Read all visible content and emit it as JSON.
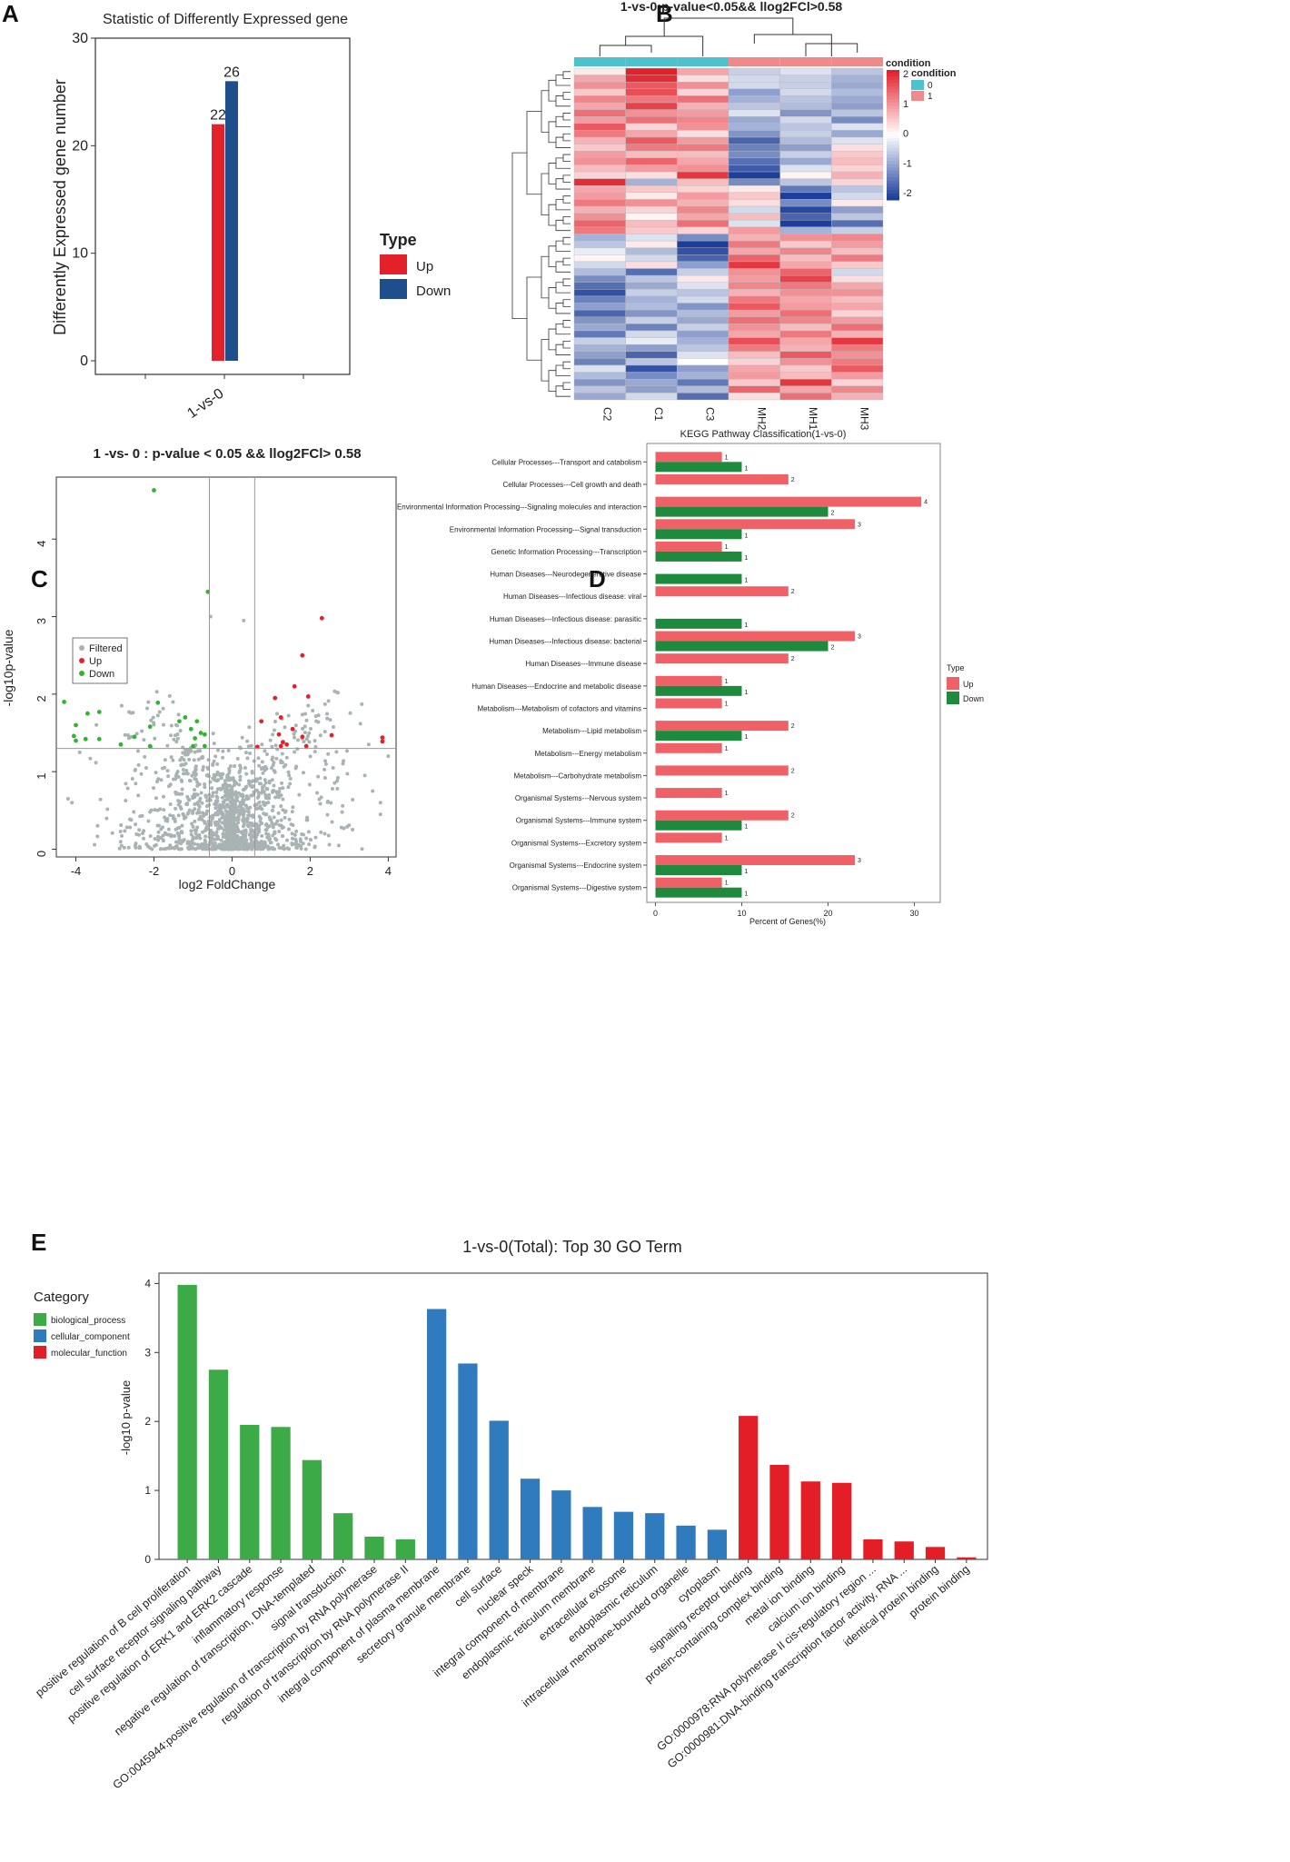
{
  "panels": {
    "a": {
      "label": "A",
      "chart_data": {
        "type": "bar",
        "title": "Statistic of Differently Expressed gene",
        "ylabel": "Differently Expressed gene number",
        "xlabel": "",
        "categories": [
          "1-vs-0"
        ],
        "series": [
          {
            "name": "Up",
            "values": [
              22
            ],
            "color": "#e3212b"
          },
          {
            "name": "Down",
            "values": [
              26
            ],
            "color": "#1f4e8c"
          }
        ],
        "ylim": [
          0,
          30
        ],
        "yticks": [
          0,
          10,
          20,
          30
        ],
        "legend_title": "Type",
        "legend_position": "right"
      }
    },
    "b": {
      "label": "B",
      "chart_data": {
        "type": "heatmap",
        "title": "1-vs-0:p-value<0.05&& llog2FCl>0.58",
        "columns": [
          "C2",
          "C1",
          "C3",
          "MH2",
          "MH1",
          "MH3"
        ],
        "column_condition": [
          "0",
          "0",
          "0",
          "1",
          "1",
          "1"
        ],
        "legend_title": "condition",
        "annotation_title": "condition",
        "condition_levels": [
          "0",
          "1"
        ],
        "condition_colors": [
          "#4dc1cc",
          "#f08a8a"
        ],
        "color_scale": {
          "min": -2,
          "max": 2,
          "low": "#1d3f9a",
          "mid": "#ffffff",
          "high": "#e3212b",
          "ticks": [
            "2",
            "1",
            "0",
            "-1",
            "-2"
          ]
        },
        "row_count": 48,
        "rows": [
          [
            0.2,
            2.0,
            0.8,
            -0.5,
            -0.3,
            -0.6
          ],
          [
            0.8,
            1.9,
            0.3,
            -0.4,
            -0.5,
            -0.8
          ],
          [
            1.0,
            1.5,
            1.0,
            -0.4,
            -0.5,
            -0.9
          ],
          [
            0.5,
            1.6,
            0.4,
            -1.0,
            -0.4,
            -0.7
          ],
          [
            1.1,
            1.2,
            1.3,
            -0.8,
            -0.6,
            -0.9
          ],
          [
            0.8,
            1.7,
            0.7,
            -0.6,
            -0.7,
            -1.0
          ],
          [
            1.3,
            1.0,
            0.9,
            -0.3,
            -1.1,
            -0.6
          ],
          [
            0.9,
            1.3,
            1.1,
            -0.9,
            -0.4,
            -1.2
          ],
          [
            1.5,
            0.4,
            1.0,
            -0.8,
            -0.6,
            -0.3
          ],
          [
            1.2,
            0.8,
            0.3,
            -1.1,
            -0.5,
            -0.9
          ],
          [
            0.7,
            1.5,
            0.9,
            -1.6,
            -0.7,
            -0.3
          ],
          [
            0.5,
            1.2,
            1.2,
            -1.3,
            -1.0,
            0.3
          ],
          [
            0.9,
            0.6,
            0.6,
            -1.2,
            -0.5,
            0.5
          ],
          [
            1.0,
            1.4,
            0.8,
            -1.5,
            -0.9,
            0.6
          ],
          [
            0.6,
            0.9,
            1.0,
            -1.7,
            -0.3,
            0.4
          ],
          [
            0.4,
            0.3,
            1.8,
            -2.0,
            0.1,
            0.7
          ],
          [
            1.9,
            -0.8,
            0.6,
            -1.2,
            -0.6,
            0.4
          ],
          [
            0.8,
            0.5,
            0.4,
            0.2,
            -1.4,
            -0.6
          ],
          [
            0.9,
            0.2,
            0.9,
            0.5,
            -2.0,
            -0.4
          ],
          [
            1.2,
            1.0,
            0.7,
            0.3,
            -1.2,
            0.2
          ],
          [
            0.7,
            0.4,
            1.1,
            -0.4,
            -1.9,
            -1.0
          ],
          [
            1.0,
            0.1,
            0.8,
            0.6,
            -1.6,
            -0.6
          ],
          [
            1.4,
            0.6,
            1.3,
            -0.3,
            -2.0,
            -1.5
          ],
          [
            1.2,
            0.5,
            0.4,
            0.9,
            -0.8,
            -0.5
          ],
          [
            -0.8,
            -0.3,
            -1.2,
            0.7,
            1.0,
            1.1
          ],
          [
            -0.6,
            0.2,
            -2.0,
            1.2,
            0.5,
            0.9
          ],
          [
            -0.2,
            -0.7,
            -1.8,
            0.8,
            1.1,
            0.6
          ],
          [
            0.1,
            -0.4,
            -1.6,
            1.4,
            0.6,
            1.2
          ],
          [
            -0.4,
            0.3,
            -1.0,
            1.8,
            0.8,
            0.5
          ],
          [
            -0.7,
            -1.5,
            -0.5,
            1.0,
            1.4,
            -0.4
          ],
          [
            -1.2,
            -0.6,
            0.2,
            0.9,
            1.7,
            0.3
          ],
          [
            -1.5,
            -0.9,
            -0.3,
            1.1,
            1.2,
            0.8
          ],
          [
            -1.8,
            -0.5,
            -0.6,
            0.7,
            1.0,
            1.0
          ],
          [
            -1.3,
            -0.8,
            -0.4,
            1.2,
            0.8,
            0.6
          ],
          [
            -1.0,
            -0.7,
            -1.1,
            1.5,
            0.9,
            0.8
          ],
          [
            -1.6,
            -1.1,
            -0.7,
            0.9,
            1.3,
            0.4
          ],
          [
            -1.1,
            -0.5,
            -0.9,
            1.3,
            1.1,
            0.9
          ],
          [
            -0.9,
            -1.3,
            -0.5,
            1.0,
            0.6,
            1.3
          ],
          [
            -1.4,
            -0.4,
            -1.0,
            0.8,
            1.2,
            0.7
          ],
          [
            -0.5,
            -0.2,
            -0.8,
            1.6,
            0.8,
            1.8
          ],
          [
            -0.8,
            -1.0,
            -0.6,
            1.2,
            0.7,
            1.2
          ],
          [
            -1.0,
            -1.6,
            -0.3,
            0.6,
            1.5,
            1.0
          ],
          [
            -1.3,
            -0.6,
            0.0,
            0.4,
            1.0,
            1.2
          ],
          [
            -0.3,
            -1.8,
            -1.0,
            0.8,
            0.5,
            1.5
          ],
          [
            -0.7,
            -1.2,
            -0.8,
            0.9,
            0.6,
            0.9
          ],
          [
            -1.1,
            -0.9,
            -1.4,
            0.5,
            1.8,
            0.4
          ],
          [
            -0.6,
            -1.0,
            -0.7,
            1.4,
            0.8,
            1.1
          ],
          [
            -0.9,
            -0.4,
            -1.5,
            0.3,
            1.3,
            0.7
          ]
        ]
      }
    },
    "c": {
      "label": "C",
      "chart_data": {
        "type": "scatter",
        "title": "1 -vs- 0 : p-value < 0.05 && llog2FCl> 0.58",
        "xlabel": "log2 FoldChange",
        "ylabel": "-log10p-value",
        "xlim": [
          -4.5,
          4.2
        ],
        "ylim": [
          -0.1,
          4.8
        ],
        "xticks": [
          -4,
          -2,
          0,
          2,
          4
        ],
        "yticks": [
          0,
          1,
          2,
          3,
          4
        ],
        "vlines": [
          -0.58,
          0.58
        ],
        "hline": 1.3,
        "legend": [
          {
            "name": "Filtered",
            "color": "#a9b3b3"
          },
          {
            "name": "Up",
            "color": "#e3212b"
          },
          {
            "name": "Down",
            "color": "#2fb52f"
          }
        ],
        "background_points": 1600,
        "up": [
          [
            2.3,
            2.98
          ],
          [
            1.8,
            2.5
          ],
          [
            1.6,
            2.1
          ],
          [
            1.95,
            1.97
          ],
          [
            1.1,
            1.95
          ],
          [
            0.75,
            1.65
          ],
          [
            1.25,
            1.7
          ],
          [
            1.55,
            1.55
          ],
          [
            2.55,
            1.47
          ],
          [
            3.85,
            1.44
          ],
          [
            3.85,
            1.39
          ],
          [
            1.2,
            1.48
          ],
          [
            1.8,
            1.45
          ],
          [
            1.3,
            1.38
          ],
          [
            1.4,
            1.35
          ],
          [
            1.9,
            1.33
          ],
          [
            0.65,
            1.32
          ],
          [
            1.25,
            1.33
          ]
        ],
        "down": [
          [
            -2.0,
            4.63
          ],
          [
            -0.62,
            3.32
          ],
          [
            -4.3,
            1.9
          ],
          [
            -3.7,
            1.75
          ],
          [
            -3.4,
            1.77
          ],
          [
            -1.9,
            1.89
          ],
          [
            -1.2,
            1.7
          ],
          [
            -4.0,
            1.6
          ],
          [
            -1.35,
            1.65
          ],
          [
            -0.9,
            1.65
          ],
          [
            -2.1,
            1.58
          ],
          [
            -1.05,
            1.55
          ],
          [
            -4.05,
            1.46
          ],
          [
            -3.75,
            1.42
          ],
          [
            -3.4,
            1.42
          ],
          [
            -2.5,
            1.45
          ],
          [
            -0.8,
            1.5
          ],
          [
            -0.7,
            1.48
          ],
          [
            -0.95,
            1.43
          ],
          [
            -4.0,
            1.4
          ],
          [
            -2.85,
            1.35
          ],
          [
            -2.1,
            1.33
          ],
          [
            -1.0,
            1.33
          ],
          [
            -0.7,
            1.33
          ]
        ],
        "filtered_outliers": [
          [
            -0.55,
            3.0
          ],
          [
            0.3,
            2.95
          ],
          [
            -4.2,
            0.65
          ],
          [
            -4.1,
            0.6
          ],
          [
            3.8,
            0.6
          ],
          [
            3.8,
            0.45
          ],
          [
            2.8,
            0.28
          ],
          [
            3.4,
            0.95
          ],
          [
            3.6,
            0.75
          ],
          [
            -3.9,
            1.25
          ],
          [
            4.0,
            1.2
          ],
          [
            3.5,
            1.35
          ]
        ]
      }
    },
    "d": {
      "label": "D",
      "chart_data": {
        "type": "bar",
        "orientation": "horizontal",
        "title": "KEGG Pathway Classification(1-vs-0)",
        "xlabel": "Percent of Genes(%)",
        "xlim": [
          -1,
          33
        ],
        "xticks": [
          0,
          10,
          20,
          30
        ],
        "legend_title": "Type",
        "series_names": [
          "Up",
          "Down"
        ],
        "series_colors": [
          "#ef6167",
          "#1e8a3d"
        ],
        "categories": [
          "Cellular Processes---Transport and catabolism",
          "Cellular Processes---Cell growth and death",
          "Environmental Information Processing---Signaling molecules and interaction",
          "Environmental Information Processing---Signal transduction",
          "Genetic Information Processing---Transcription",
          "Human Diseases---Neurodegenerative disease",
          "Human Diseases---Infectious disease: viral",
          "Human Diseases---Infectious disease: parasitic",
          "Human Diseases---Infectious disease: bacterial",
          "Human Diseases---Immune disease",
          "Human Diseases---Endocrine and metabolic disease",
          "Metabolism---Metabolism of cofactors and vitamins",
          "Metabolism---Lipid metabolism",
          "Metabolism---Energy metabolism",
          "Metabolism---Carbohydrate metabolism",
          "Organismal Systems---Nervous system",
          "Organismal Systems---Immune system",
          "Organismal Systems---Excretory system",
          "Organismal Systems---Endocrine system",
          "Organismal Systems---Digestive system"
        ],
        "up_pct": [
          7.7,
          15.4,
          30.8,
          23.1,
          7.7,
          null,
          15.4,
          null,
          23.1,
          15.4,
          7.7,
          7.7,
          15.4,
          7.7,
          15.4,
          7.7,
          15.4,
          7.7,
          23.1,
          7.7
        ],
        "down_pct": [
          10.0,
          null,
          20.0,
          10.0,
          10.0,
          10.0,
          null,
          10.0,
          20.0,
          null,
          10.0,
          null,
          10.0,
          null,
          null,
          null,
          10.0,
          null,
          10.0,
          10.0
        ],
        "up_counts": [
          "1",
          "2",
          "4",
          "3",
          "1",
          null,
          "2",
          null,
          "3",
          "2",
          "1",
          "1",
          "2",
          "1",
          "2",
          "1",
          "2",
          "1",
          "3",
          "1"
        ],
        "down_counts": [
          "1",
          null,
          "2",
          "1",
          "1",
          "1",
          null,
          "1",
          "2",
          null,
          "1",
          null,
          "1",
          null,
          null,
          null,
          "1",
          null,
          "1",
          "1"
        ]
      }
    },
    "e": {
      "label": "E",
      "chart_data": {
        "type": "bar",
        "title": "1-vs-0(Total): Top 30 GO Term",
        "ylabel": "-log10 p-value",
        "ylim": [
          0,
          4.15
        ],
        "yticks": [
          0,
          1,
          2,
          3,
          4
        ],
        "legend_title": "Category",
        "legend": [
          {
            "name": "biological_process",
            "color": "#3daa48"
          },
          {
            "name": "cellular_component",
            "color": "#2f7bbd"
          },
          {
            "name": "molecular_function",
            "color": "#e31e26"
          }
        ],
        "categories": [
          "positive regulation of B cell proliferation",
          "cell surface receptor signaling pathway",
          "positive regulation of ERK1 and ERK2 cascade",
          "inflammatory response",
          "negative regulation of transcription, DNA-templated",
          "signal transduction",
          "GO:0045944:positive regulation of transcription by RNA polymerase",
          "regulation of transcription by RNA polymerase II",
          "integral component of plasma membrane",
          "secretory granule membrane",
          "cell surface",
          "nuclear speck",
          "integral component of membrane",
          "endoplasmic reticulum membrane",
          "extracellular exosome",
          "endoplasmic reticulum",
          "intracellular membrane-bounded organelle",
          "cytoplasm",
          "signaling receptor binding",
          "protein-containing complex binding",
          "metal ion binding",
          "calcium ion binding",
          "GO:0000978:RNA polymerase II cis-regulatory region ...",
          "GO:0000981:DNA-binding transcription factor activity, RNA ...",
          "identical protein binding",
          "protein binding"
        ],
        "group": [
          0,
          0,
          0,
          0,
          0,
          0,
          0,
          0,
          1,
          1,
          1,
          1,
          1,
          1,
          1,
          1,
          1,
          1,
          2,
          2,
          2,
          2,
          2,
          2,
          2,
          2
        ],
        "values": [
          3.98,
          2.75,
          1.95,
          1.92,
          1.44,
          0.67,
          0.33,
          0.29,
          3.63,
          2.84,
          2.01,
          1.17,
          1.0,
          0.76,
          0.69,
          0.67,
          0.49,
          0.43,
          2.08,
          1.37,
          1.13,
          1.11,
          0.29,
          0.26,
          0.18,
          0.03
        ]
      }
    }
  }
}
